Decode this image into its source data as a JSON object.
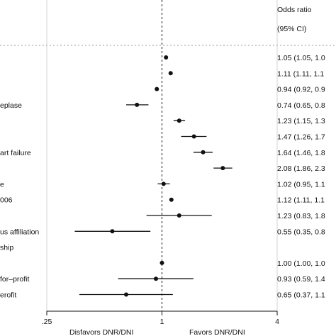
{
  "header": {
    "or_title": "Odds ratio",
    "ci_title": "(95% CI)"
  },
  "chart_data": {
    "type": "forest",
    "x_scale": "log",
    "xlim": [
      0.25,
      4
    ],
    "x_ticks": [
      {
        "value": 0.25,
        "label": ".25"
      },
      {
        "value": 1,
        "label": "1"
      },
      {
        "value": 4,
        "label": "4"
      }
    ],
    "reference_line": 1,
    "direction_labels": {
      "left": "Disfavors DNR/DNI",
      "right": "Favors DNR/DNI"
    },
    "row_labels": [
      {
        "row": 3,
        "text": "eplase"
      },
      {
        "row": 6,
        "text": "art failure"
      },
      {
        "row": 8,
        "text": "e"
      },
      {
        "row": 9,
        "text": "006"
      },
      {
        "row": 11,
        "text": "us affiliation"
      },
      {
        "row": 12,
        "text": "ship"
      },
      {
        "row": 14,
        "text": "for–profit"
      },
      {
        "row": 15,
        "text": "erofit"
      }
    ],
    "estimates": [
      {
        "row": 0,
        "or": 1.05,
        "lo": 1.05,
        "hi": 1.05,
        "label": "1.05 (1.05, 1.0"
      },
      {
        "row": 1,
        "or": 1.11,
        "lo": 1.11,
        "hi": 1.11,
        "label": "1.11 (1.11, 1.1"
      },
      {
        "row": 2,
        "or": 0.94,
        "lo": 0.92,
        "hi": 0.96,
        "label": "0.94 (0.92, 0.9"
      },
      {
        "row": 3,
        "or": 0.74,
        "lo": 0.65,
        "hi": 0.85,
        "label": "0.74 (0.65, 0.8"
      },
      {
        "row": 4,
        "or": 1.23,
        "lo": 1.15,
        "hi": 1.32,
        "label": "1.23 (1.15, 1.3"
      },
      {
        "row": 5,
        "or": 1.47,
        "lo": 1.26,
        "hi": 1.71,
        "label": "1.47 (1.26, 1.7"
      },
      {
        "row": 6,
        "or": 1.64,
        "lo": 1.46,
        "hi": 1.84,
        "label": "1.64 (1.46, 1.8"
      },
      {
        "row": 7,
        "or": 2.08,
        "lo": 1.86,
        "hi": 2.33,
        "label": "2.08 (1.86, 2.3"
      },
      {
        "row": 8,
        "or": 1.02,
        "lo": 0.95,
        "hi": 1.1,
        "label": "1.02 (0.95, 1.1"
      },
      {
        "row": 9,
        "or": 1.12,
        "lo": 1.11,
        "hi": 1.14,
        "label": "1.12 (1.11, 1.1"
      },
      {
        "row": 10,
        "or": 1.23,
        "lo": 0.83,
        "hi": 1.82,
        "label": "1.23 (0.83, 1.8"
      },
      {
        "row": 11,
        "or": 0.55,
        "lo": 0.35,
        "hi": 0.87,
        "label": "0.55 (0.35, 0.8"
      },
      {
        "row": 13,
        "or": 1.0,
        "lo": 1.0,
        "hi": 1.0,
        "label": "1.00 (1.00, 1.0"
      },
      {
        "row": 14,
        "or": 0.93,
        "lo": 0.59,
        "hi": 1.46,
        "label": "0.93 (0.59, 1.4"
      },
      {
        "row": 15,
        "or": 0.65,
        "lo": 0.37,
        "hi": 1.14,
        "label": "0.65 (0.37, 1.1"
      }
    ]
  }
}
